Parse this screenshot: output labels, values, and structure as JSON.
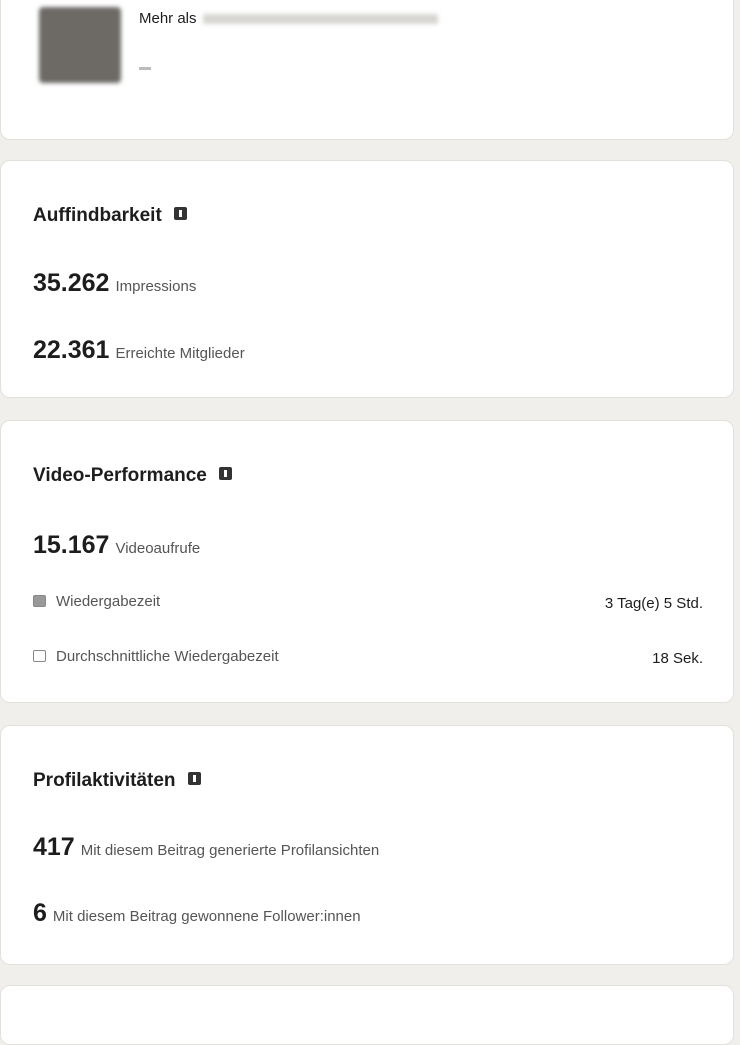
{
  "header": {
    "text": "Mehr als"
  },
  "sections": [
    {
      "title": "Auffindbarkeit",
      "metrics": [
        {
          "value": "35.262",
          "label": "Impressions"
        },
        {
          "value": "22.361",
          "label": "Erreichte Mitglieder"
        }
      ]
    },
    {
      "title": "Video-Performance",
      "metrics": [
        {
          "value": "15.167",
          "label": "Videoaufrufe"
        }
      ],
      "rows": [
        {
          "label": "Wiedergabezeit",
          "value": "3 Tag(e) 5 Std."
        },
        {
          "label": "Durchschnittliche Wiedergabezeit",
          "value": "18 Sek."
        }
      ]
    },
    {
      "title": "Profilaktivitäten",
      "metrics": [
        {
          "value": "417",
          "label": "Mit diesem Beitrag generierte Profilansichten"
        },
        {
          "value": "6",
          "label": "Mit diesem Beitrag gewonnene Follower:innen"
        }
      ]
    }
  ]
}
